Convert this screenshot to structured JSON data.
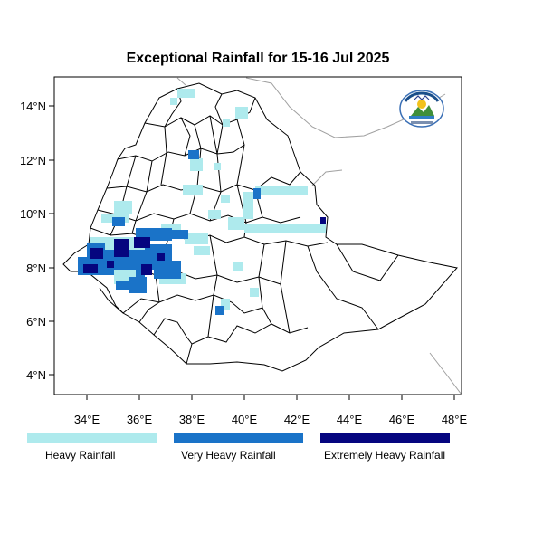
{
  "title": "Exceptional Rainfall for 15-16 Jul 2025",
  "axes": {
    "x_ticks": [
      "34°E",
      "36°E",
      "38°E",
      "40°E",
      "42°E",
      "44°E",
      "46°E",
      "48°E"
    ],
    "y_ticks": [
      "14°N",
      "12°N",
      "10°N",
      "8°N",
      "6°N",
      "4°N"
    ]
  },
  "legend": [
    {
      "label": "Heavy Rainfall",
      "color": "#aeeaed"
    },
    {
      "label": "Very Heavy Rainfall",
      "color": "#1a73c8"
    },
    {
      "label": "Extremely Heavy Rainfall",
      "color": "#05057f"
    }
  ],
  "logo": {
    "icon": "agency-logo-icon"
  },
  "colors": {
    "boundary": "#000000",
    "neighbor_border": "#a0a0a0"
  }
}
